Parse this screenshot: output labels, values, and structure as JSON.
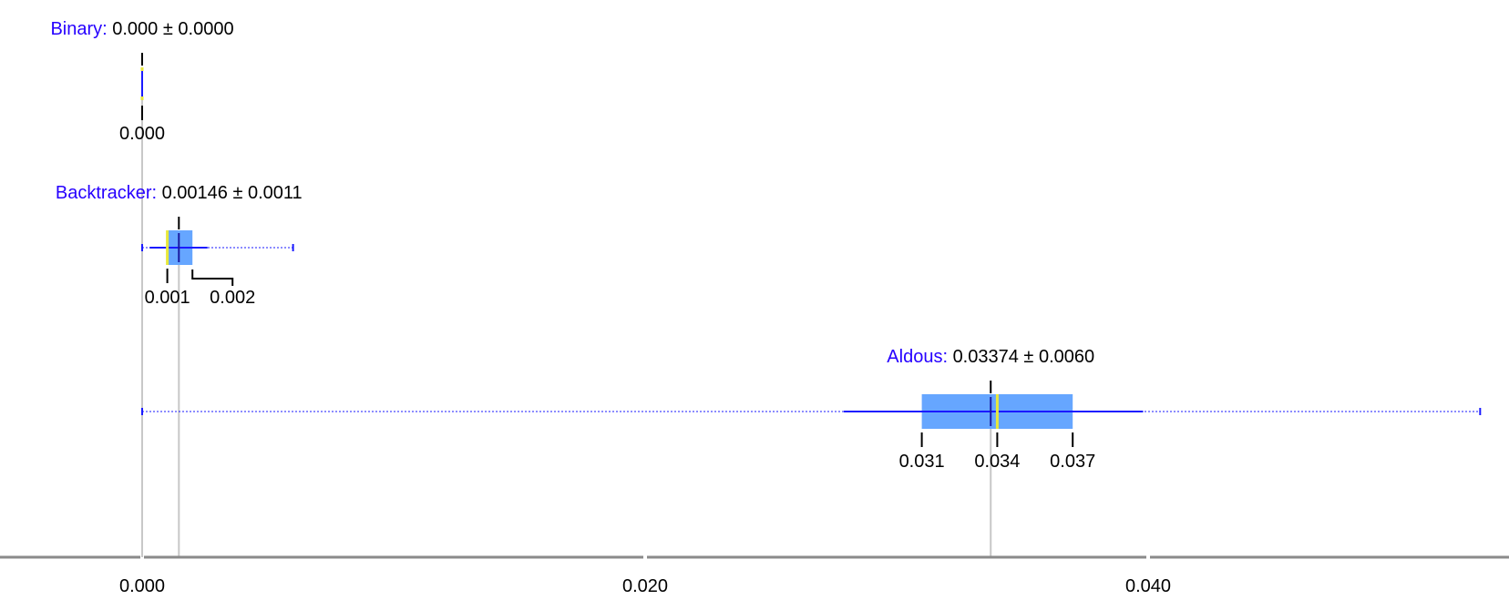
{
  "chart_data": {
    "type": "box",
    "title": "",
    "xlabel": "",
    "ylabel": "",
    "xlim": [
      -0.0057,
      0.054
    ],
    "x_ticks": [
      {
        "value": 0.0,
        "label": "0.000"
      },
      {
        "value": 0.02,
        "label": "0.020"
      },
      {
        "value": 0.04,
        "label": "0.040"
      }
    ],
    "series": [
      {
        "name": "Binary",
        "summary": "0.000 ± 0.0000",
        "mean": 0.0,
        "std": 0.0,
        "min": 0.0,
        "max": 0.0,
        "q1": 0.0,
        "median": 0.0,
        "q3": 0.0,
        "whisker_low": 0.0,
        "whisker_high": 0.0,
        "box_labels": [
          {
            "value": 0.0,
            "label": "0.000"
          }
        ]
      },
      {
        "name": "Backtracker",
        "summary": "0.00146 ± 0.0011",
        "mean": 0.00146,
        "std": 0.0011,
        "min": 0.0,
        "max": 0.006,
        "q1": 0.001,
        "median": 0.001,
        "q3": 0.002,
        "whisker_low": 0.0003,
        "whisker_high": 0.0026,
        "box_labels": [
          {
            "value": 0.001,
            "label": "0.001"
          },
          {
            "value": 0.002,
            "label": "0.002"
          }
        ]
      },
      {
        "name": "Aldous",
        "summary": "0.03374 ± 0.0060",
        "mean": 0.03374,
        "std": 0.006,
        "min": 0.0,
        "max": 0.0532,
        "q1": 0.031,
        "median": 0.034,
        "q3": 0.037,
        "whisker_low": 0.0279,
        "whisker_high": 0.0398,
        "box_labels": [
          {
            "value": 0.031,
            "label": "0.031"
          },
          {
            "value": 0.034,
            "label": "0.034"
          },
          {
            "value": 0.037,
            "label": "0.037"
          }
        ]
      }
    ],
    "colors": {
      "box": "#66a6ff",
      "series_name": "#2600ff",
      "whisker": "#1a1aff",
      "median": "#e8e83a",
      "axis": "#8a8a8a",
      "guide": "#c8c8c8"
    }
  }
}
